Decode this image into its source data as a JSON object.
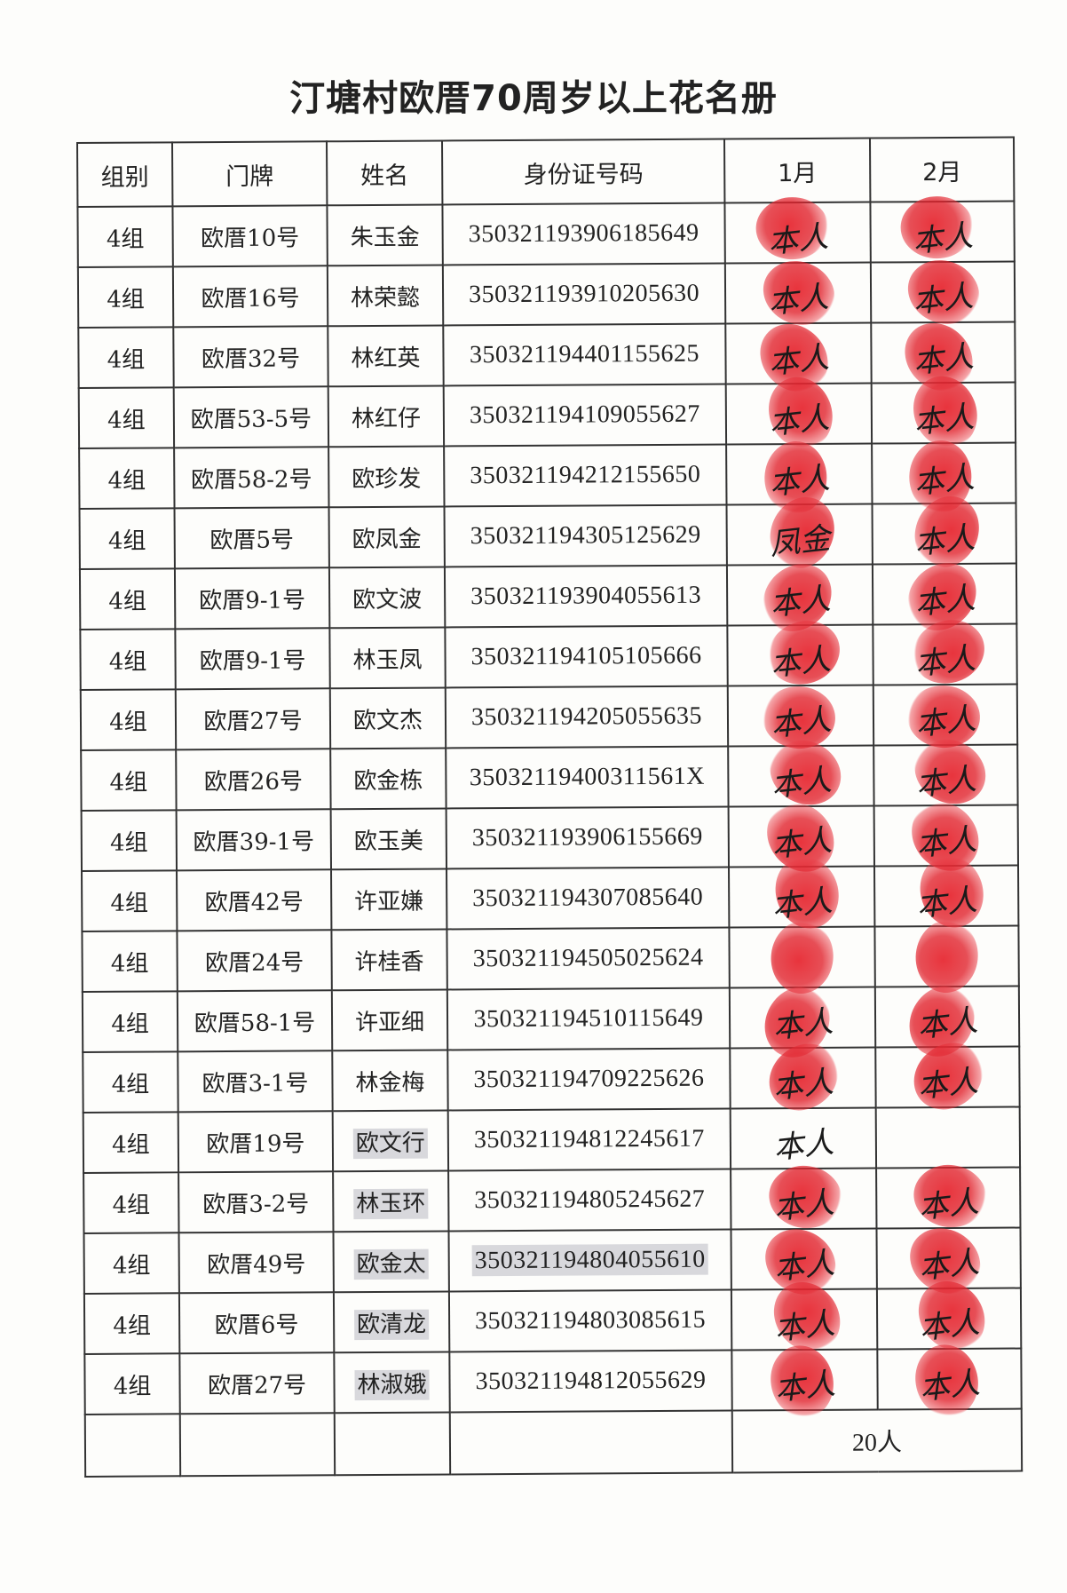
{
  "title": "汀塘村欧厝70周岁以上花名册",
  "headers": [
    "组别",
    "门牌",
    "姓名",
    "身份证号码",
    "1月",
    "2月"
  ],
  "rows": [
    {
      "group": "4组",
      "address": "欧厝10号",
      "name": "朱玉金",
      "id": "350321193906185649",
      "m1": "本人",
      "m1_stamp": true,
      "m2": "本人",
      "m2_stamp": true
    },
    {
      "group": "4组",
      "address": "欧厝16号",
      "name": "林荣懿",
      "id": "350321193910205630",
      "m1": "本人",
      "m1_stamp": true,
      "m2": "本人",
      "m2_stamp": true
    },
    {
      "group": "4组",
      "address": "欧厝32号",
      "name": "林红英",
      "id": "350321194401155625",
      "m1": "本人",
      "m1_stamp": true,
      "m2": "本人",
      "m2_stamp": true
    },
    {
      "group": "4组",
      "address": "欧厝53-5号",
      "name": "林红仔",
      "id": "350321194109055627",
      "m1": "本人",
      "m1_stamp": true,
      "m2": "本人",
      "m2_stamp": true
    },
    {
      "group": "4组",
      "address": "欧厝58-2号",
      "name": "欧珍发",
      "id": "350321194212155650",
      "m1": "本人",
      "m1_stamp": true,
      "m2": "本人",
      "m2_stamp": true
    },
    {
      "group": "4组",
      "address": "欧厝5号",
      "name": "欧凤金",
      "id": "350321194305125629",
      "m1": "凤金",
      "m1_stamp": true,
      "m2": "本人",
      "m2_stamp": true
    },
    {
      "group": "4组",
      "address": "欧厝9-1号",
      "name": "欧文波",
      "id": "350321193904055613",
      "m1": "本人",
      "m1_stamp": true,
      "m2": "本人",
      "m2_stamp": true
    },
    {
      "group": "4组",
      "address": "欧厝9-1号",
      "name": "林玉凤",
      "id": "350321194105105666",
      "m1": "本人",
      "m1_stamp": true,
      "m2": "本人",
      "m2_stamp": true
    },
    {
      "group": "4组",
      "address": "欧厝27号",
      "name": "欧文杰",
      "id": "350321194205055635",
      "m1": "本人",
      "m1_stamp": true,
      "m2": "本人",
      "m2_stamp": true
    },
    {
      "group": "4组",
      "address": "欧厝26号",
      "name": "欧金栋",
      "id": "35032119400311561X",
      "m1": "本人",
      "m1_stamp": true,
      "m2": "本人",
      "m2_stamp": true
    },
    {
      "group": "4组",
      "address": "欧厝39-1号",
      "name": "欧玉美",
      "id": "350321193906155669",
      "m1": "本人",
      "m1_stamp": true,
      "m2": "本人",
      "m2_stamp": true
    },
    {
      "group": "4组",
      "address": "欧厝42号",
      "name": "许亚嫌",
      "id": "350321194307085640",
      "m1": "本人",
      "m1_stamp": true,
      "m2": "本人",
      "m2_stamp": true
    },
    {
      "group": "4组",
      "address": "欧厝24号",
      "name": "许桂香",
      "id": "350321194505025624",
      "m1": "",
      "m1_stamp": true,
      "m2": "",
      "m2_stamp": true
    },
    {
      "group": "4组",
      "address": "欧厝58-1号",
      "name": "许亚细",
      "id": "350321194510115649",
      "m1": "本人",
      "m1_stamp": true,
      "m2": "本人",
      "m2_stamp": true
    },
    {
      "group": "4组",
      "address": "欧厝3-1号",
      "name": "林金梅",
      "id": "350321194709225626",
      "m1": "本人",
      "m1_stamp": true,
      "m2": "本人",
      "m2_stamp": true
    },
    {
      "group": "4组",
      "address": "欧厝19号",
      "name": "欧文行",
      "id": "350321194812245617",
      "m1": "本人",
      "m1_stamp": false,
      "m2": "",
      "m2_stamp": false
    },
    {
      "group": "4组",
      "address": "欧厝3-2号",
      "name": "林玉环",
      "id": "350321194805245627",
      "m1": "本人",
      "m1_stamp": true,
      "m2": "本人",
      "m2_stamp": true
    },
    {
      "group": "4组",
      "address": "欧厝49号",
      "name": "欧金太",
      "id": "350321194804055610",
      "m1": "本人",
      "m1_stamp": true,
      "m2": "本人",
      "m2_stamp": true
    },
    {
      "group": "4组",
      "address": "欧厝6号",
      "name": "欧清龙",
      "id": "350321194803085615",
      "m1": "本人",
      "m1_stamp": true,
      "m2": "本人",
      "m2_stamp": true
    },
    {
      "group": "4组",
      "address": "欧厝27号",
      "name": "林淑娥",
      "id": "350321194812055629",
      "m1": "本人",
      "m1_stamp": true,
      "m2": "本人",
      "m2_stamp": true
    }
  ],
  "shaded_names": [
    15,
    16,
    17,
    18,
    19
  ],
  "shaded_ids": [
    17
  ],
  "total": "20人",
  "colors": {
    "stamp": "#e0232d",
    "ink": "#222222"
  }
}
